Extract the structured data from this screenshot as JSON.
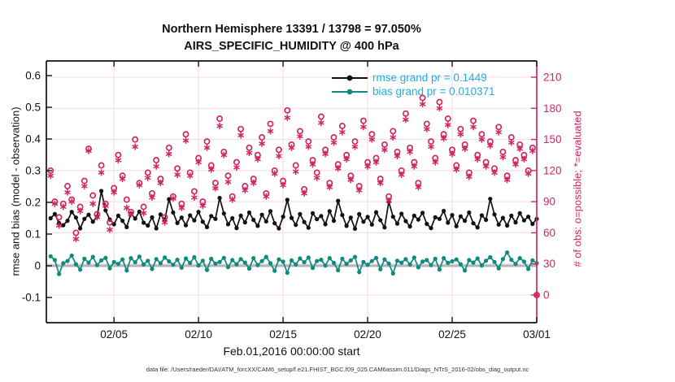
{
  "title": {
    "line1": "Northern Hemisphere 13391 / 13798 = 97.050%",
    "line2": "AIRS_SPECIFIC_HUMIDITY @ 400 hPa"
  },
  "axes": {
    "left": {
      "label": "rmse and bias (model - observation)",
      "tick_labels": [
        "-0.1",
        "0",
        "0.1",
        "0.2",
        "0.3",
        "0.4",
        "0.5",
        "0.6"
      ],
      "tick_values": [
        -0.1,
        0,
        0.1,
        0.2,
        0.3,
        0.4,
        0.5,
        0.6
      ],
      "range": [
        -0.1795,
        0.6462
      ],
      "color": "#111111"
    },
    "right": {
      "label": "# of obs: o=possible; *=evaluated",
      "tick_labels": [
        "0",
        "30",
        "60",
        "90",
        "120",
        "150",
        "180",
        "210"
      ],
      "tick_values": [
        0,
        30,
        60,
        90,
        120,
        150,
        180,
        210
      ],
      "range": [
        -26.65,
        225.67
      ],
      "color": "#d1265f"
    },
    "x": {
      "label": "Feb.01,2016 00:00:00 start",
      "tick_labels": [
        "02/05",
        "02/10",
        "02/15",
        "02/20",
        "02/25",
        "03/01"
      ],
      "tick_days": [
        4,
        9,
        14,
        19,
        24,
        29
      ],
      "range_days": [
        0,
        29
      ]
    }
  },
  "legend": {
    "text_color": "#22ace4",
    "items": [
      {
        "label": "rmse grand pr = 0.1449",
        "color": "#111111"
      },
      {
        "label": "bias grand pr = 0.010371",
        "color": "#0e8a7e"
      }
    ]
  },
  "footer": "data file: /Users/raeder/DAI/ATM_forcXX/CAM6_setup/f.e21.FHIST_BGC.f09_025.CAM6assim.011/Diags_NTrS_2016-02/obs_diag_output.nc",
  "colors": {
    "rmse": "#111111",
    "bias": "#0e8a7e",
    "obs": "#d1265f",
    "grid": "#f4d9e2",
    "zero_line": "#b5b5b5",
    "legend_text": "#22ace4"
  },
  "chart_data": {
    "type": "line",
    "x_unit": "days since Feb.01,2016 00:00:00",
    "x": [
      0.25,
      0.5,
      0.75,
      1,
      1.25,
      1.5,
      1.75,
      2,
      2.25,
      2.5,
      2.75,
      3,
      3.25,
      3.5,
      3.75,
      4,
      4.25,
      4.5,
      4.75,
      5,
      5.25,
      5.5,
      5.75,
      6,
      6.25,
      6.5,
      6.75,
      7,
      7.25,
      7.5,
      7.75,
      8,
      8.25,
      8.5,
      8.75,
      9,
      9.25,
      9.5,
      9.75,
      10,
      10.25,
      10.5,
      10.75,
      11,
      11.25,
      11.5,
      11.75,
      12,
      12.25,
      12.5,
      12.75,
      13,
      13.25,
      13.5,
      13.75,
      14,
      14.25,
      14.5,
      14.75,
      15,
      15.25,
      15.5,
      15.75,
      16,
      16.25,
      16.5,
      16.75,
      17,
      17.25,
      17.5,
      17.75,
      18,
      18.25,
      18.5,
      18.75,
      19,
      19.25,
      19.5,
      19.75,
      20,
      20.25,
      20.5,
      20.75,
      21,
      21.25,
      21.5,
      21.75,
      22,
      22.25,
      22.5,
      22.75,
      23,
      23.25,
      23.5,
      23.75,
      24,
      24.25,
      24.5,
      24.75,
      25,
      25.25,
      25.5,
      25.75,
      26,
      26.25,
      26.5,
      26.75,
      27,
      27.25,
      27.5,
      27.75,
      28,
      28.25,
      28.5,
      28.75,
      29
    ],
    "series": [
      {
        "name": "rmse",
        "axis": "left",
        "color": "#111111",
        "marker": "dot",
        "grand_value": 0.1449,
        "values": [
          0.15,
          0.163,
          0.135,
          0.128,
          0.142,
          0.17,
          0.152,
          0.118,
          0.148,
          0.161,
          0.139,
          0.155,
          0.236,
          0.175,
          0.146,
          0.131,
          0.158,
          0.142,
          0.122,
          0.165,
          0.149,
          0.171,
          0.136,
          0.127,
          0.153,
          0.118,
          0.162,
          0.145,
          0.21,
          0.168,
          0.135,
          0.152,
          0.128,
          0.159,
          0.143,
          0.17,
          0.139,
          0.122,
          0.157,
          0.148,
          0.214,
          0.165,
          0.131,
          0.15,
          0.119,
          0.158,
          0.137,
          0.168,
          0.145,
          0.126,
          0.161,
          0.14,
          0.172,
          0.134,
          0.118,
          0.155,
          0.208,
          0.151,
          0.129,
          0.163,
          0.138,
          0.12,
          0.166,
          0.147,
          0.157,
          0.131,
          0.172,
          0.142,
          0.205,
          0.16,
          0.126,
          0.152,
          0.117,
          0.163,
          0.139,
          0.154,
          0.13,
          0.169,
          0.144,
          0.121,
          0.202,
          0.155,
          0.133,
          0.164,
          0.141,
          0.124,
          0.158,
          0.146,
          0.167,
          0.132,
          0.119,
          0.153,
          0.148,
          0.173,
          0.136,
          0.16,
          0.125,
          0.156,
          0.142,
          0.168,
          0.134,
          0.121,
          0.159,
          0.145,
          0.211,
          0.162,
          0.13,
          0.151,
          0.127,
          0.158,
          0.137,
          0.166,
          0.143,
          0.155,
          0.132,
          0.148
        ]
      },
      {
        "name": "bias",
        "axis": "left",
        "color": "#0e8a7e",
        "marker": "dot",
        "grand_value": 0.010371,
        "values": [
          0.03,
          0.018,
          -0.026,
          0.008,
          0.015,
          0.032,
          0.005,
          -0.012,
          0.022,
          0.01,
          0.028,
          0.002,
          0.017,
          0.025,
          -0.008,
          0.012,
          0.006,
          0.02,
          -0.015,
          0.024,
          0.011,
          0.029,
          0.004,
          0.016,
          -0.01,
          0.021,
          0.008,
          0.026,
          0.014,
          0.003,
          0.019,
          -0.006,
          0.023,
          0.009,
          0.027,
          0.001,
          0.016,
          -0.013,
          0.022,
          0.007,
          0.012,
          0.025,
          -0.004,
          0.018,
          0.005,
          0.021,
          0.01,
          -0.009,
          0.024,
          0.002,
          0.015,
          0.028,
          0.008,
          -0.016,
          0.02,
          0.013,
          -0.022,
          0.017,
          0.004,
          0.023,
          0.011,
          0.026,
          -0.007,
          0.015,
          0.019,
          0.001,
          0.024,
          0.009,
          -0.014,
          0.022,
          0.006,
          0.017,
          0.028,
          -0.02,
          0.012,
          0.003,
          0.015,
          0.025,
          -0.011,
          0.02,
          0.007,
          -0.024,
          0.016,
          0.01,
          0.021,
          0.004,
          0.026,
          -0.005,
          0.013,
          0.018,
          0.002,
          0.022,
          -0.012,
          0.024,
          0.009,
          0.014,
          0.02,
          0.005,
          -0.015,
          0.018,
          0.01,
          0.023,
          0.001,
          0.016,
          0.027,
          0.012,
          -0.008,
          0.021,
          0.042,
          0.019,
          0.006,
          0.024,
          0.013,
          -0.01,
          0.017,
          0.008
        ]
      },
      {
        "name": "N_possible",
        "axis": "right",
        "color": "#d1265f",
        "marker": "circle",
        "values": [
          120,
          90,
          75,
          88,
          105,
          92,
          60,
          85,
          110,
          141,
          96,
          78,
          125,
          88,
          70,
          103,
          135,
          115,
          92,
          80,
          150,
          108,
          85,
          118,
          98,
          130,
          112,
          75,
          142,
          95,
          122,
          88,
          155,
          118,
          100,
          132,
          90,
          148,
          125,
          108,
          170,
          138,
          115,
          95,
          128,
          160,
          105,
          142,
          112,
          135,
          152,
          98,
          165,
          120,
          140,
          110,
          178,
          145,
          125,
          158,
          102,
          148,
          130,
          118,
          172,
          140,
          108,
          152,
          126,
          163,
          135,
          115,
          148,
          105,
          168,
          128,
          155,
          132,
          112,
          145,
          95,
          158,
          138,
          120,
          175,
          142,
          128,
          108,
          190,
          165,
          148,
          132,
          186,
          155,
          170,
          140,
          125,
          160,
          145,
          118,
          168,
          135,
          155,
          128,
          148,
          122,
          162,
          138,
          115,
          152,
          130,
          145,
          135,
          120,
          142,
          0
        ]
      },
      {
        "name": "N_evaluated",
        "axis": "right",
        "color": "#d1265f",
        "marker": "asterisk",
        "values": [
          115,
          88,
          67,
          85,
          99,
          90,
          54,
          81,
          105,
          139,
          88,
          75,
          118,
          86,
          63,
          99,
          130,
          112,
          84,
          78,
          143,
          106,
          79,
          113,
          94,
          124,
          108,
          70,
          136,
          93,
          116,
          84,
          149,
          115,
          94,
          128,
          86,
          142,
          121,
          103,
          163,
          135,
          109,
          92,
          123,
          154,
          101,
          137,
          108,
          131,
          146,
          95,
          158,
          117,
          134,
          106,
          171,
          142,
          119,
          153,
          98,
          143,
          126,
          113,
          166,
          136,
          104,
          147,
          122,
          157,
          131,
          111,
          143,
          101,
          162,
          124,
          150,
          128,
          108,
          140,
          91,
          152,
          134,
          116,
          169,
          138,
          124,
          104,
          184,
          160,
          143,
          128,
          180,
          151,
          164,
          136,
          121,
          155,
          141,
          114,
          162,
          131,
          150,
          124,
          144,
          118,
          157,
          133,
          111,
          147,
          126,
          141,
          131,
          117,
          139,
          0
        ]
      }
    ],
    "zero_line": {
      "axis": "left",
      "value": 0
    },
    "grid": true,
    "legend_position": "top-right-inside"
  }
}
